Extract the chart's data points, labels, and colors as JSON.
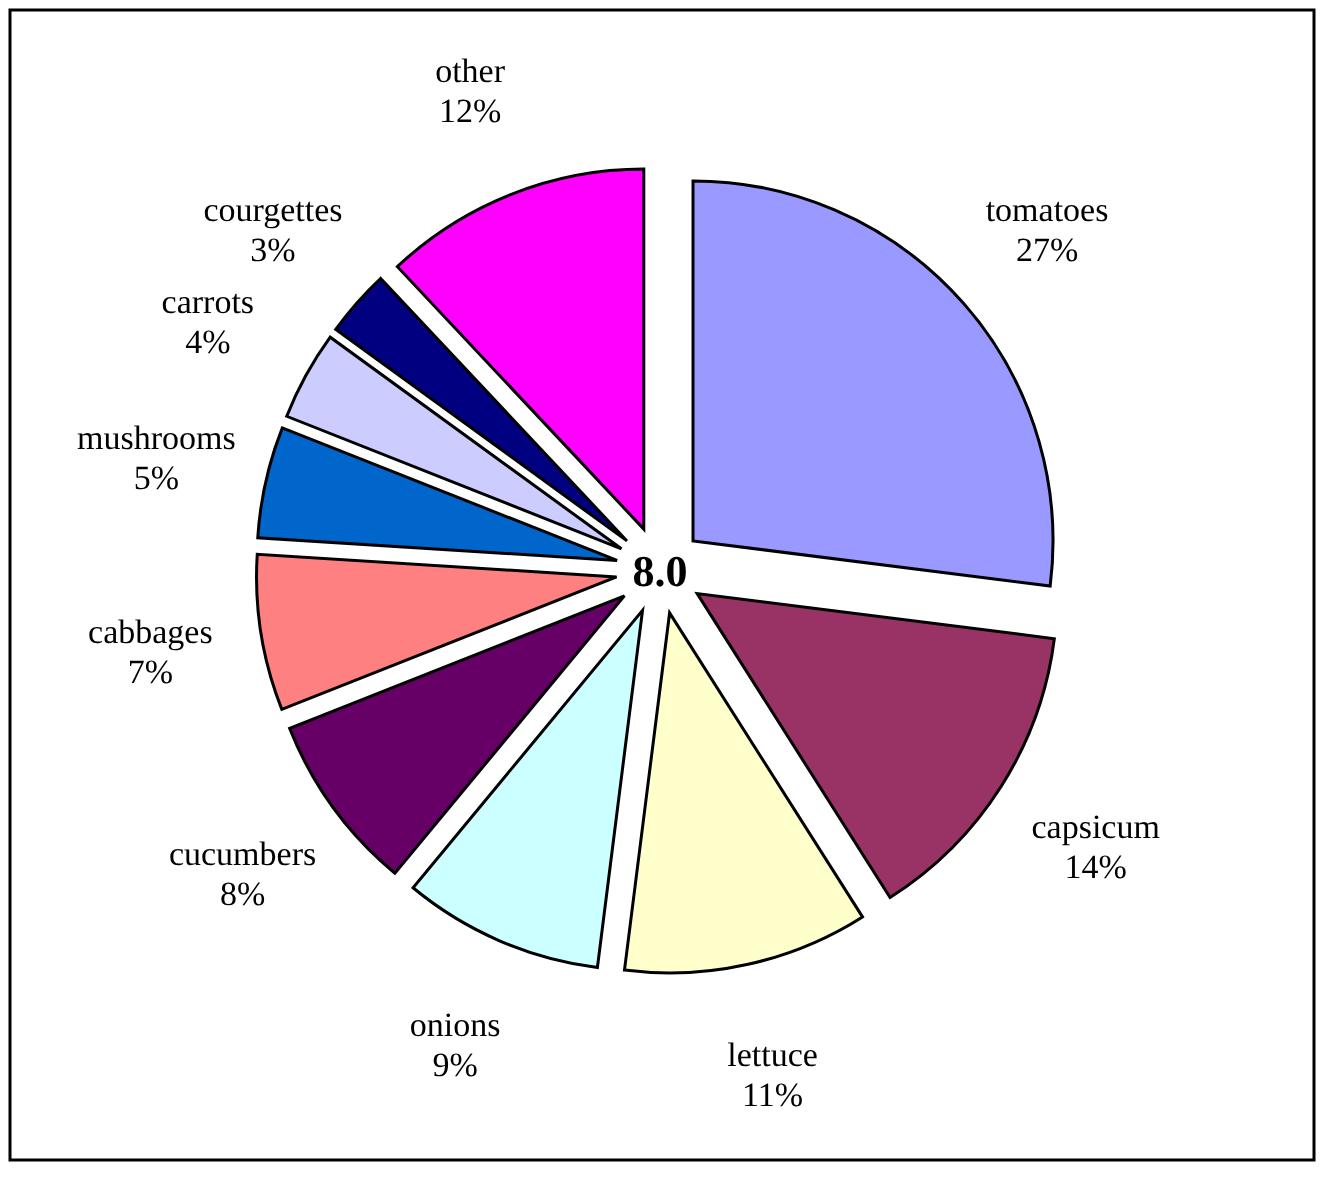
{
  "chart_data": {
    "type": "pie",
    "categories": [
      "tomatoes",
      "capsicum",
      "lettuce",
      "onions",
      "cucumbers",
      "cabbages",
      "mushrooms",
      "carrots",
      "courgettes",
      "other"
    ],
    "values": [
      27,
      14,
      11,
      9,
      8,
      7,
      5,
      4,
      3,
      12
    ],
    "colors": [
      "#9999ff",
      "#993366",
      "#ffffcc",
      "#ccffff",
      "#660066",
      "#ff8080",
      "#0066cc",
      "#ccccff",
      "#000080",
      "#ff00ff"
    ],
    "value_labels": [
      "27%",
      "14%",
      "11%",
      "9%",
      "8%",
      "7%",
      "5%",
      "4%",
      "3%",
      "12%"
    ],
    "annotations": [
      "8.0"
    ]
  }
}
